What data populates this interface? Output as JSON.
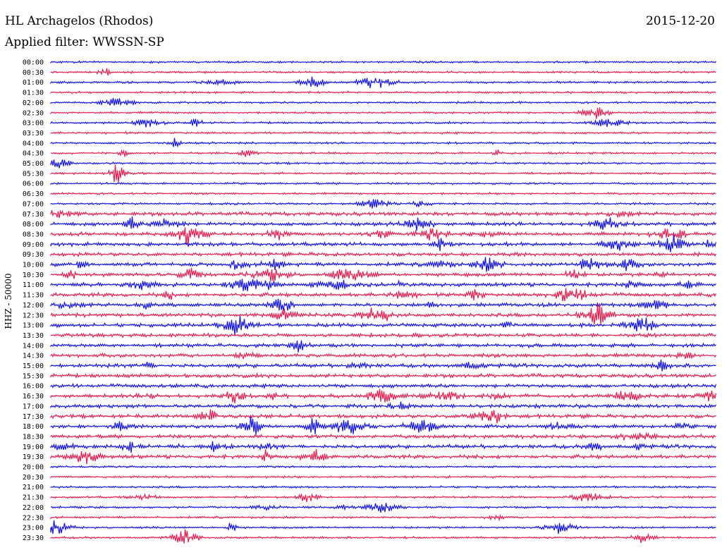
{
  "header": {
    "title": "HL Archagelos (Rhodos)",
    "date": "2015-12-20",
    "filter": "Applied filter: WWSSN-SP"
  },
  "chart_data": {
    "type": "line",
    "title": "HL Archagelos (Rhodos)",
    "ylabel": "HHZ - 50000",
    "series_colors": [
      "#1414e6",
      "#e61e50"
    ],
    "tick_labels": [
      "00:00",
      "00:30",
      "01:00",
      "01:30",
      "02:00",
      "02:30",
      "03:00",
      "03:30",
      "04:00",
      "04:30",
      "05:00",
      "05:30",
      "06:00",
      "06:30",
      "07:00",
      "07:30",
      "08:00",
      "08:30",
      "09:00",
      "09:30",
      "10:00",
      "10:30",
      "11:00",
      "11:30",
      "12:00",
      "12:30",
      "13:00",
      "13:30",
      "14:00",
      "14:30",
      "15:00",
      "15:30",
      "16:00",
      "16:30",
      "17:00",
      "17:30",
      "18:00",
      "18:30",
      "19:00",
      "19:30",
      "20:00",
      "20:30",
      "21:00",
      "21:30",
      "22:00",
      "22:30",
      "23:00",
      "23:30"
    ],
    "grid": false
  }
}
